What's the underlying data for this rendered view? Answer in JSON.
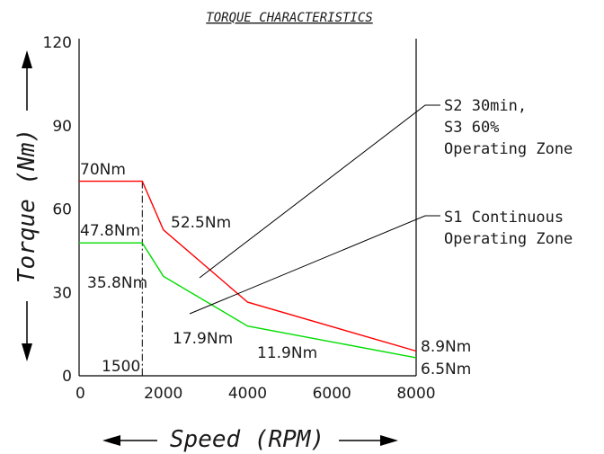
{
  "chart_data": {
    "type": "line",
    "title": "TORQUE CHARACTERISTICS",
    "xlabel": "Speed (RPM)",
    "ylabel": "Torque (Nm)",
    "xlim": [
      0,
      8000
    ],
    "ylim": [
      0,
      120
    ],
    "x_ticks": [
      "0",
      "2000",
      "4000",
      "6000",
      "8000"
    ],
    "y_ticks": [
      "0",
      "30",
      "60",
      "90",
      "120"
    ],
    "grid": false,
    "series": [
      {
        "name": "S2 30min, S3 60% Operating Zone",
        "color": "#ff0000",
        "x": [
          0,
          1500,
          2000,
          4000,
          8000
        ],
        "y": [
          70,
          70,
          52.5,
          26.5,
          8.9
        ]
      },
      {
        "name": "S1 Continuous Operating Zone",
        "color": "#00dd00",
        "x": [
          0,
          1500,
          2000,
          4000,
          8000
        ],
        "y": [
          47.8,
          47.8,
          35.8,
          17.9,
          6.5
        ]
      }
    ],
    "annotations": {
      "peak_torque": "70Nm",
      "peak_knee_torque": "52.5Nm",
      "peak_end_torque": "8.9Nm",
      "cont_torque": "47.8Nm",
      "cont_knee_torque": "35.8Nm",
      "cont_mid_torque": "17.9Nm",
      "cont_mid2_torque": "11.9Nm",
      "cont_end_torque": "6.5Nm",
      "base_speed": "1500"
    },
    "zone_labels": {
      "s2": [
        "S2  30min,",
        "S3  60%",
        "Operating  Zone"
      ],
      "s1": [
        "S1  Continuous",
        "Operating  Zone"
      ]
    }
  }
}
